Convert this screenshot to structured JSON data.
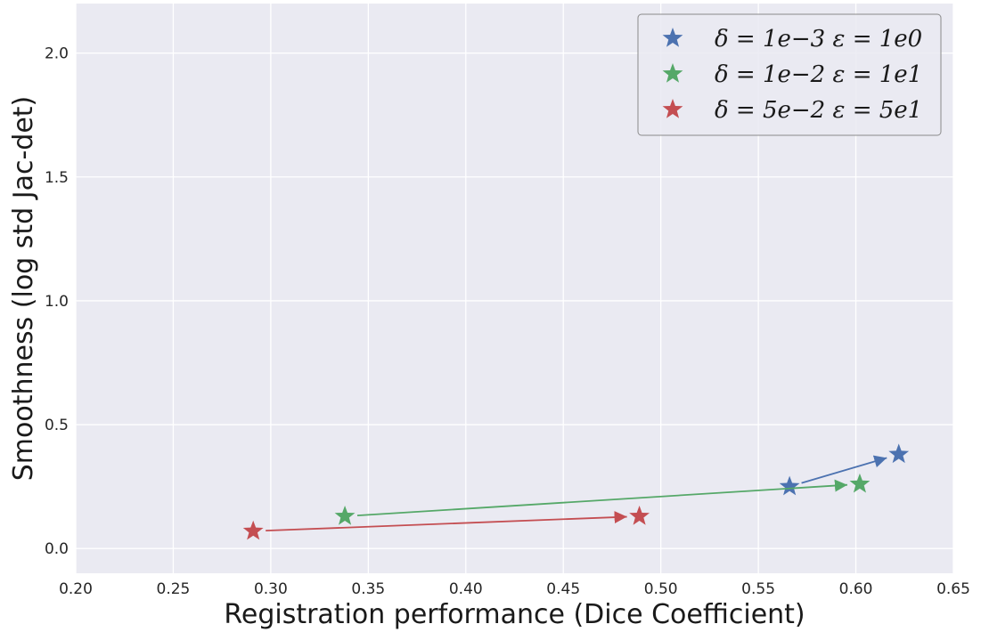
{
  "chart_data": {
    "type": "scatter",
    "title": "",
    "xlabel": "Registration performance (Dice Coefficient)",
    "ylabel": "Smoothness (log std Jac-det)",
    "xlim": [
      0.2,
      0.65
    ],
    "ylim": [
      -0.1,
      2.2
    ],
    "xticks": [
      "0.20",
      "0.25",
      "0.30",
      "0.35",
      "0.40",
      "0.45",
      "0.50",
      "0.55",
      "0.60",
      "0.65"
    ],
    "yticks": [
      "0.0",
      "0.5",
      "1.0",
      "1.5",
      "2.0"
    ],
    "grid": true,
    "legend_position": "top-right",
    "series": [
      {
        "name": "δ = 1e−3    ε = 1e0",
        "color": "#4c72b0",
        "from": {
          "x": 0.566,
          "y": 0.25
        },
        "to": {
          "x": 0.622,
          "y": 0.38
        }
      },
      {
        "name": "δ = 1e−2    ε = 1e1",
        "color": "#55a868",
        "from": {
          "x": 0.338,
          "y": 0.13
        },
        "to": {
          "x": 0.602,
          "y": 0.26
        }
      },
      {
        "name": "δ = 5e−2    ε = 5e1",
        "color": "#c44e52",
        "from": {
          "x": 0.291,
          "y": 0.07
        },
        "to": {
          "x": 0.489,
          "y": 0.13
        }
      }
    ]
  }
}
